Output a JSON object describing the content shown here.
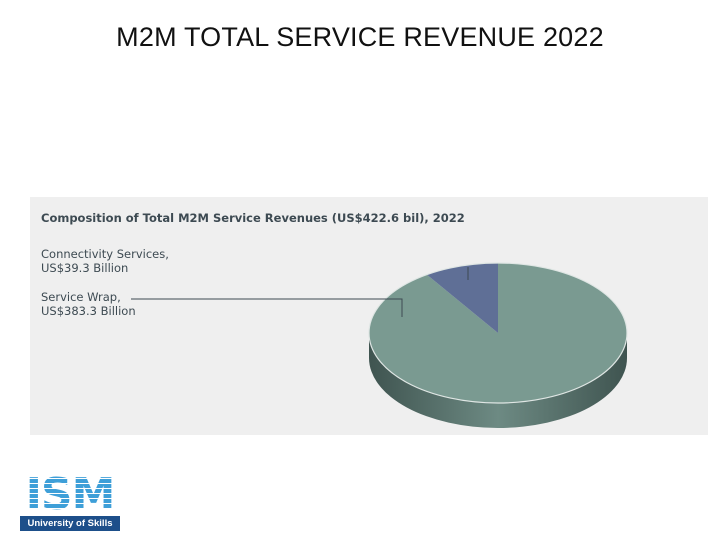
{
  "slide": {
    "title": "M2M TOTAL SERVICE REVENUE 2022"
  },
  "chart_data": {
    "type": "pie",
    "title": "Composition of Total M2M Service Revenues (US$422.6 bil), 2022",
    "slices": [
      {
        "name": "Connectivity Services,",
        "value_label": "US$39.3 Billion",
        "value": 39.3,
        "color": "#5f6f96",
        "side_color": "#3e4b6a"
      },
      {
        "name": "Service Wrap,",
        "value_label": "US$383.3 Billion",
        "value": 383.3,
        "color": "#7a9a91",
        "side_color": "#4f6661"
      }
    ],
    "total": 422.6,
    "unit": "US$ Billion",
    "style": "3d",
    "background": "#efefef"
  },
  "logo": {
    "letters": "ISM",
    "tagline": "University of Skills",
    "color": "#3e9fd8",
    "bar_color": "#1d4f8a"
  }
}
